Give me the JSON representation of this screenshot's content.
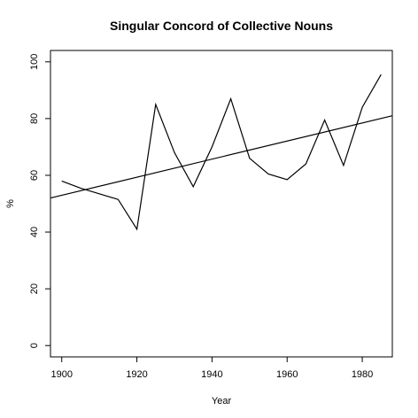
{
  "chart_data": {
    "type": "line",
    "title": "Singular Concord of Collective Nouns",
    "xlabel": "Year",
    "ylabel": "%",
    "xlim": [
      1897,
      1988
    ],
    "ylim": [
      -4,
      104
    ],
    "xticks": [
      1900,
      1920,
      1940,
      1960,
      1980
    ],
    "yticks": [
      0,
      20,
      40,
      60,
      80,
      100
    ],
    "grid": false,
    "x": [
      1900,
      1905,
      1910,
      1915,
      1920,
      1925,
      1930,
      1935,
      1940,
      1945,
      1950,
      1955,
      1960,
      1965,
      1970,
      1975,
      1980,
      1985
    ],
    "values": [
      58,
      55.5,
      53.5,
      51.5,
      41,
      85,
      68,
      56,
      70,
      87,
      66,
      60.5,
      58.5,
      64,
      79.5,
      63.5,
      84,
      95.5
    ],
    "trend": {
      "x": [
        1897,
        1988
      ],
      "y": [
        52,
        81
      ]
    }
  }
}
